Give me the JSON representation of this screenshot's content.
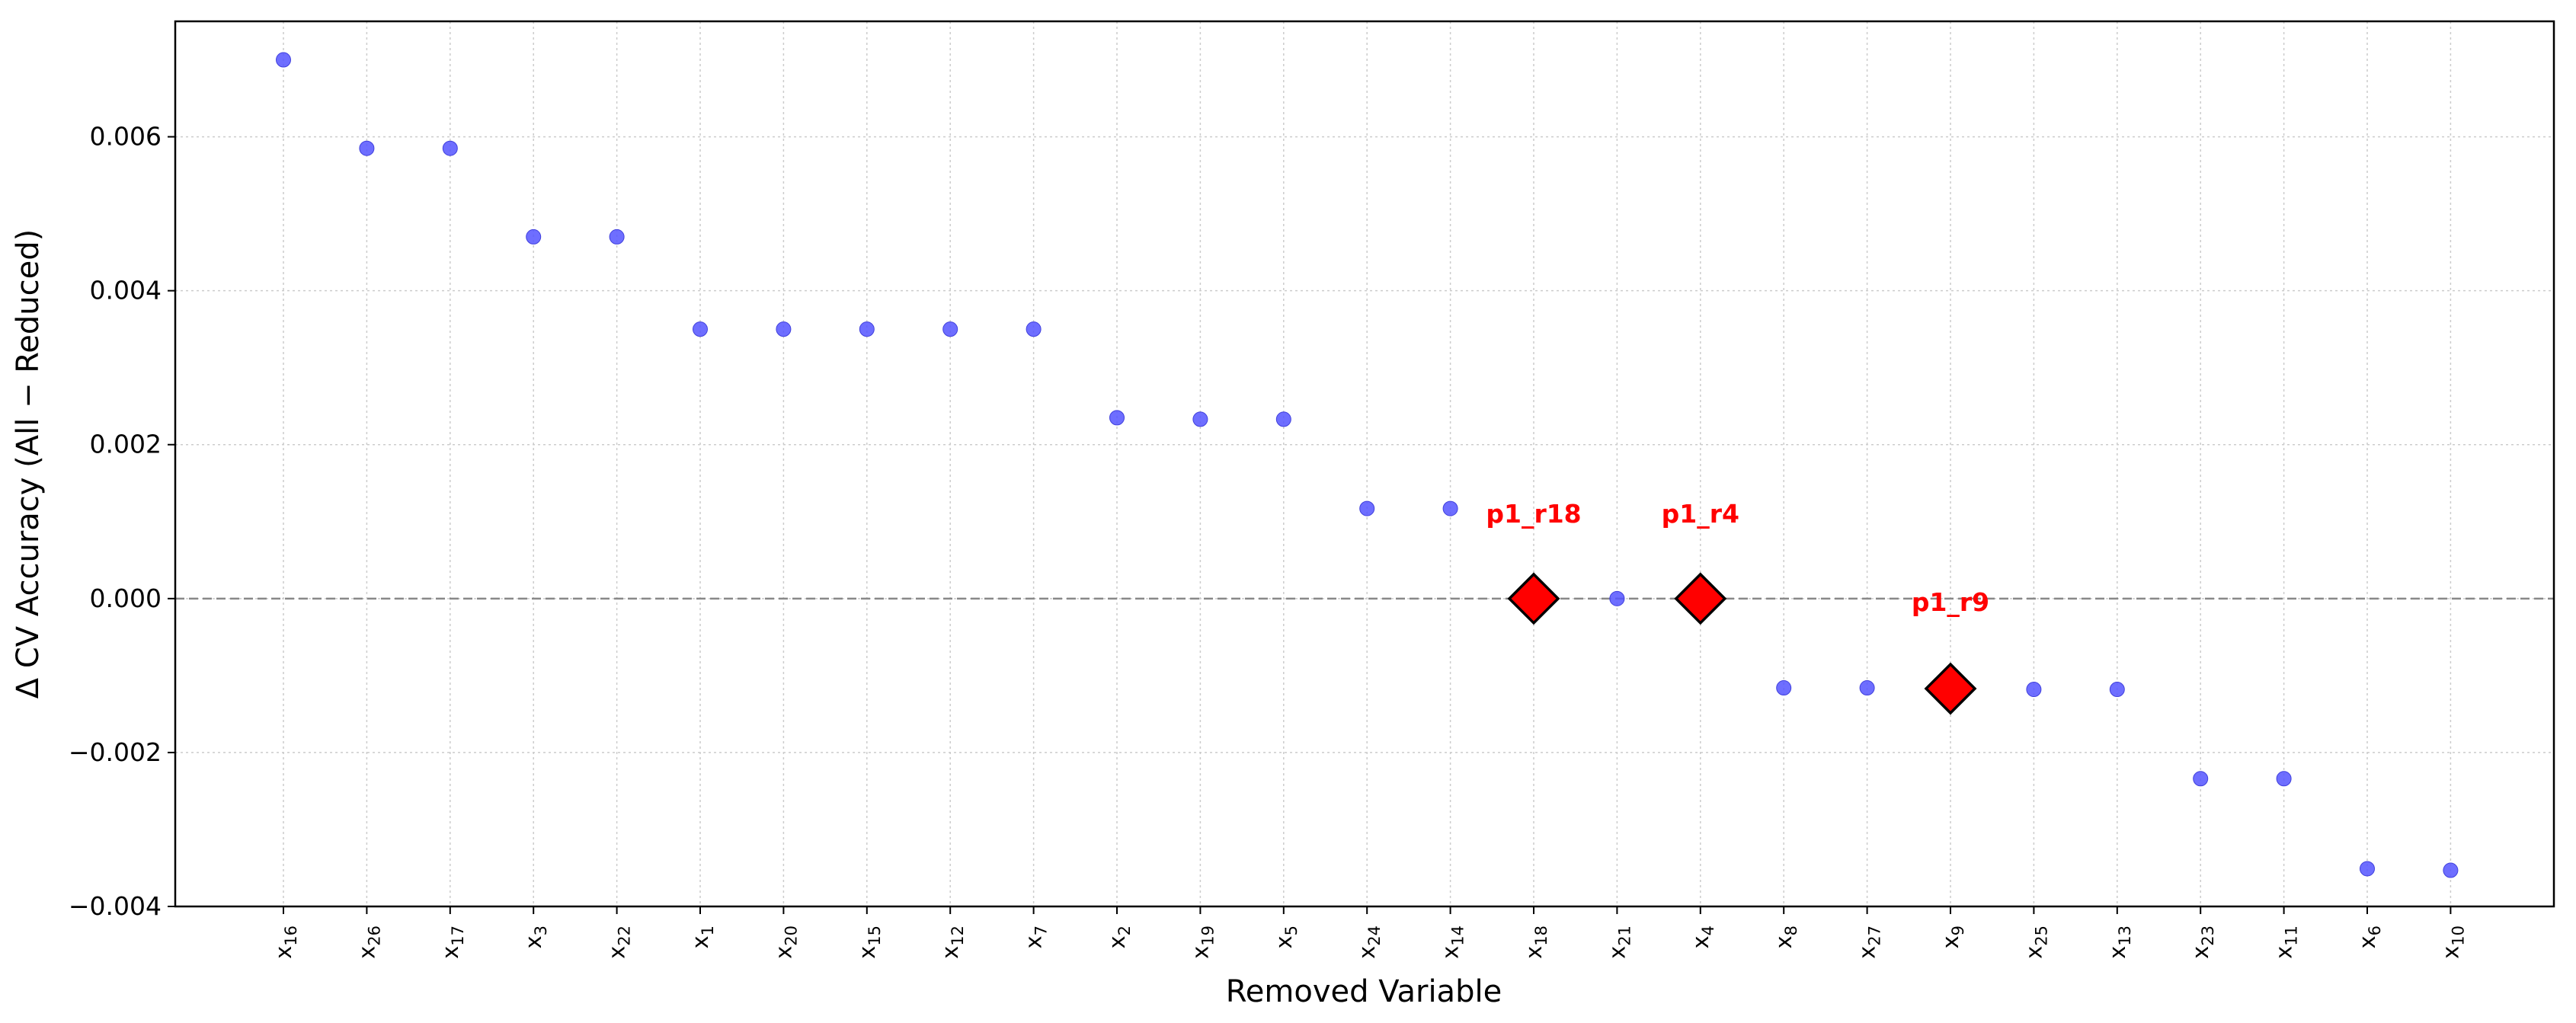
{
  "chart_data": {
    "type": "scatter",
    "title": "",
    "xlabel": "Removed Variable",
    "ylabel": "Δ CV Accuracy (All − Reduced)",
    "ylim": [
      -0.004,
      0.0075
    ],
    "yticks": [
      -0.004,
      -0.002,
      0.0,
      0.002,
      0.004,
      0.006
    ],
    "ytick_labels": [
      "−0.004",
      "−0.002",
      "0.000",
      "0.002",
      "0.004",
      "0.006"
    ],
    "grid": true,
    "reference_line": 0.0,
    "categories": [
      {
        "base": "x",
        "sub": "16"
      },
      {
        "base": "x",
        "sub": "26"
      },
      {
        "base": "x",
        "sub": "17"
      },
      {
        "base": "x",
        "sub": "3"
      },
      {
        "base": "x",
        "sub": "22"
      },
      {
        "base": "x",
        "sub": "1"
      },
      {
        "base": "x",
        "sub": "20"
      },
      {
        "base": "x",
        "sub": "15"
      },
      {
        "base": "x",
        "sub": "12"
      },
      {
        "base": "x",
        "sub": "7"
      },
      {
        "base": "x",
        "sub": "2"
      },
      {
        "base": "x",
        "sub": "19"
      },
      {
        "base": "x",
        "sub": "5"
      },
      {
        "base": "x",
        "sub": "24"
      },
      {
        "base": "x",
        "sub": "14"
      },
      {
        "base": "x",
        "sub": "18"
      },
      {
        "base": "x",
        "sub": "21"
      },
      {
        "base": "x",
        "sub": "4"
      },
      {
        "base": "x",
        "sub": "8"
      },
      {
        "base": "x",
        "sub": "27"
      },
      {
        "base": "x",
        "sub": "9"
      },
      {
        "base": "x",
        "sub": "25"
      },
      {
        "base": "x",
        "sub": "13"
      },
      {
        "base": "x",
        "sub": "23"
      },
      {
        "base": "x",
        "sub": "11"
      },
      {
        "base": "x",
        "sub": "6"
      },
      {
        "base": "x",
        "sub": "10"
      }
    ],
    "values": [
      0.007,
      0.00585,
      0.00585,
      0.0047,
      0.0047,
      0.0035,
      0.0035,
      0.0035,
      0.0035,
      0.0035,
      0.00235,
      0.00233,
      0.00233,
      0.00117,
      0.00117,
      0.0,
      0.0,
      0.0,
      -0.00116,
      -0.00116,
      -0.00117,
      -0.00118,
      -0.00118,
      -0.00234,
      -0.00234,
      -0.00351,
      -0.00353
    ],
    "highlighted": [
      {
        "index": 15,
        "label": "p1_r18"
      },
      {
        "index": 17,
        "label": "p1_r4"
      },
      {
        "index": 20,
        "label": "p1_r9"
      }
    ],
    "colors": {
      "point": "#5555ff",
      "highlight": "#ff0000",
      "highlight_edge": "#000000",
      "reference_line": "#888888",
      "grid": "#cccccc"
    }
  }
}
